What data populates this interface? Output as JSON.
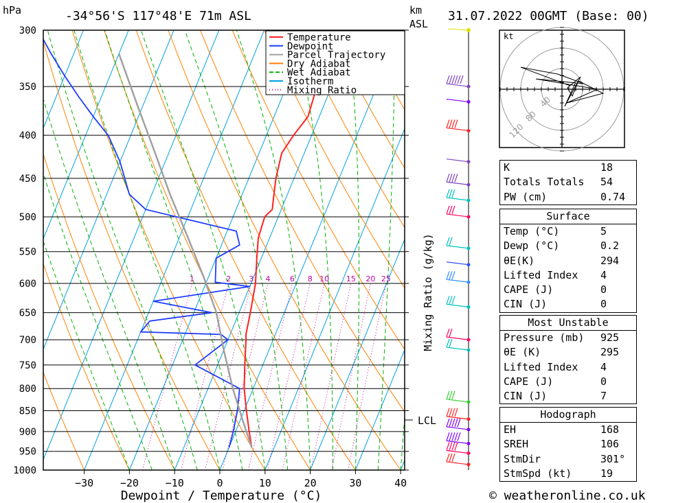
{
  "header": {
    "unit_hpa": "hPa",
    "location": "-34°56'S  117°48'E  71m  ASL",
    "km_label": "km",
    "asl_label": "ASL",
    "datetime": "31.07.2022  00GMT  (Base: 00)"
  },
  "footer": {
    "credit": "© weatheronline.co.uk"
  },
  "lcl_label": "LCL",
  "hodograph": {
    "unit": "kt",
    "rings": [
      "40",
      "80",
      "120"
    ]
  },
  "mixing_ratio_axis": "Mixing Ratio (g/kg)",
  "colors": {
    "temperature": "#ff2020",
    "dewpoint": "#1e3cff",
    "parcel": "#a0a0a0",
    "dry_adiabat": "#ff8000",
    "wet_adiabat": "#00b000",
    "isotherm": "#00a0e0",
    "mixing_ratio": "#c000a0"
  },
  "chart_data": {
    "type": "line",
    "title": "",
    "xlabel": "Dewpoint / Temperature (°C)",
    "ylabel": "hPa",
    "x_ticks": [
      "−30",
      "−20",
      "−10",
      "0",
      "10",
      "20",
      "30",
      "40"
    ],
    "p_ticks": [
      300,
      350,
      400,
      450,
      500,
      550,
      600,
      650,
      700,
      750,
      800,
      850,
      900,
      950,
      1000
    ],
    "xlim": [
      -40,
      40
    ],
    "plim": [
      1000,
      300
    ],
    "mixing_ratio_labels": [
      "1",
      "2",
      "3",
      "4",
      "6",
      "8",
      "10",
      "15",
      "20",
      "25"
    ],
    "legend": [
      "Temperature",
      "Dewpoint",
      "Parcel Trajectory",
      "Dry Adiabat",
      "Wet Adiabat",
      "Isotherm",
      "Mixing Ratio"
    ],
    "series": [
      {
        "name": "Temperature",
        "points": [
          [
            5,
            940
          ],
          [
            3,
            900
          ],
          [
            0.5,
            850
          ],
          [
            -2,
            800
          ],
          [
            -4,
            750
          ],
          [
            -6,
            700
          ],
          [
            -6.5,
            690
          ],
          [
            -7.5,
            650
          ],
          [
            -9,
            600
          ],
          [
            -11,
            560
          ],
          [
            -12.5,
            530
          ],
          [
            -13,
            500
          ],
          [
            -12,
            490
          ],
          [
            -13,
            470
          ],
          [
            -14,
            450
          ],
          [
            -15,
            420
          ],
          [
            -14,
            400
          ],
          [
            -12.5,
            380
          ],
          [
            -13,
            360
          ],
          [
            -14,
            330
          ],
          [
            -14.5,
            320
          ],
          [
            -13,
            300
          ]
        ]
      },
      {
        "name": "Dewpoint",
        "points": [
          [
            0,
            940
          ],
          [
            -0.5,
            900
          ],
          [
            -1.5,
            850
          ],
          [
            -3,
            800
          ],
          [
            -15,
            750
          ],
          [
            -10,
            700
          ],
          [
            -12,
            690
          ],
          [
            -30,
            685
          ],
          [
            -29,
            665
          ],
          [
            -16,
            650
          ],
          [
            -30,
            630
          ],
          [
            -10,
            605
          ],
          [
            -18,
            598
          ],
          [
            -20,
            560
          ],
          [
            -16,
            540
          ],
          [
            -18,
            520
          ],
          [
            -40,
            490
          ],
          [
            -45,
            470
          ],
          [
            -50,
            430
          ],
          [
            -55,
            400
          ],
          [
            -60,
            380
          ],
          [
            -65,
            360
          ],
          [
            -70,
            340
          ],
          [
            -75,
            320
          ],
          [
            -80,
            300
          ]
        ]
      },
      {
        "name": "Parcel Trajectory",
        "points": [
          [
            5,
            940
          ],
          [
            0.7,
            875
          ],
          [
            -4.5,
            800
          ],
          [
            -10,
            720
          ],
          [
            -15,
            650
          ],
          [
            -21,
            590
          ],
          [
            -28,
            530
          ],
          [
            -36,
            470
          ],
          [
            -43,
            420
          ],
          [
            -51,
            370
          ],
          [
            -60,
            320
          ]
        ]
      }
    ]
  },
  "indices": {
    "top": [
      {
        "k": "K",
        "v": "18"
      },
      {
        "k": "Totals Totals",
        "v": "54"
      },
      {
        "k": "PW (cm)",
        "v": "0.74"
      }
    ],
    "surface_title": "Surface",
    "surface": [
      {
        "k": "Temp (°C)",
        "v": "5"
      },
      {
        "k": "Dewp (°C)",
        "v": "0.2"
      },
      {
        "k": "θE(K)",
        "v": "294"
      },
      {
        "k": "Lifted Index",
        "v": "4"
      },
      {
        "k": "CAPE (J)",
        "v": "0"
      },
      {
        "k": "CIN (J)",
        "v": "0"
      }
    ],
    "mu_title": "Most Unstable",
    "mu": [
      {
        "k": "Pressure (mb)",
        "v": "925"
      },
      {
        "k": "θE (K)",
        "v": "295"
      },
      {
        "k": "Lifted Index",
        "v": "4"
      },
      {
        "k": "CAPE (J)",
        "v": "0"
      },
      {
        "k": "CIN (J)",
        "v": "7"
      }
    ],
    "hodo_title": "Hodograph",
    "hodo": [
      {
        "k": "EH",
        "v": "168"
      },
      {
        "k": "SREH",
        "v": "106"
      },
      {
        "k": "StmDir",
        "v": "301°"
      },
      {
        "k": "StmSpd (kt)",
        "v": "19"
      }
    ]
  }
}
